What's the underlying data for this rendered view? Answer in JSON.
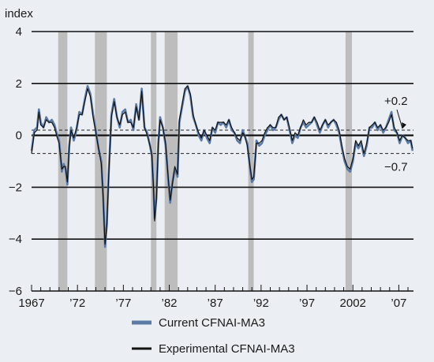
{
  "chart_data": {
    "type": "line",
    "ylabel": "index",
    "ylim": [
      -6,
      4
    ],
    "yticks": [
      4,
      2,
      0,
      -2,
      -4,
      -6
    ],
    "ytick_labels": [
      "4",
      "2",
      "0",
      "−2",
      "−4",
      "−6"
    ],
    "xlim": [
      1967,
      2008.6
    ],
    "xticks": [
      1967,
      1972,
      1977,
      1982,
      1987,
      1992,
      1997,
      2002,
      2007
    ],
    "xtick_labels": [
      "1967",
      "’72",
      "’77",
      "’82",
      "’87",
      "’92",
      "’97",
      "2002",
      "’07"
    ],
    "grid": "horizontal",
    "reference_lines": [
      {
        "value": 0.2,
        "style": "dashed",
        "label": "+0.2"
      },
      {
        "value": -0.7,
        "style": "dashed",
        "label": "−0.7"
      }
    ],
    "shaded_recessions": [
      [
        1969.9,
        1970.9
      ],
      [
        1973.9,
        1975.2
      ],
      [
        1980.0,
        1980.6
      ],
      [
        1981.5,
        1982.9
      ],
      [
        1990.6,
        1991.2
      ],
      [
        2001.2,
        2001.9
      ]
    ],
    "legend_placement": "bottom-center",
    "colors": {
      "current": "#5b7aa6",
      "experimental": "#111111",
      "shade": "#bdbdbd",
      "background": "#ebeef2"
    },
    "series": [
      {
        "name": "Current CFNAI-MA3",
        "points": [
          [
            1967.0,
            -0.6
          ],
          [
            1967.3,
            0.2
          ],
          [
            1967.6,
            0.3
          ],
          [
            1967.8,
            1.0
          ],
          [
            1968.0,
            0.5
          ],
          [
            1968.3,
            0.3
          ],
          [
            1968.6,
            0.7
          ],
          [
            1968.9,
            0.5
          ],
          [
            1969.2,
            0.6
          ],
          [
            1969.5,
            0.4
          ],
          [
            1969.8,
            0.0
          ],
          [
            1970.0,
            -0.2
          ],
          [
            1970.3,
            -1.4
          ],
          [
            1970.5,
            -1.1
          ],
          [
            1970.7,
            -1.3
          ],
          [
            1970.9,
            -1.9
          ],
          [
            1971.1,
            -0.4
          ],
          [
            1971.3,
            0.3
          ],
          [
            1971.6,
            -0.2
          ],
          [
            1971.9,
            0.2
          ],
          [
            1972.2,
            0.9
          ],
          [
            1972.5,
            0.8
          ],
          [
            1972.8,
            1.4
          ],
          [
            1973.1,
            1.9
          ],
          [
            1973.4,
            1.6
          ],
          [
            1973.7,
            0.8
          ],
          [
            1974.0,
            0.2
          ],
          [
            1974.3,
            -0.5
          ],
          [
            1974.6,
            -1.0
          ],
          [
            1974.8,
            -2.3
          ],
          [
            1975.0,
            -4.3
          ],
          [
            1975.2,
            -3.4
          ],
          [
            1975.4,
            -1.5
          ],
          [
            1975.7,
            0.8
          ],
          [
            1976.0,
            1.4
          ],
          [
            1976.3,
            0.7
          ],
          [
            1976.6,
            0.3
          ],
          [
            1976.9,
            0.9
          ],
          [
            1977.2,
            1.0
          ],
          [
            1977.5,
            0.5
          ],
          [
            1977.8,
            0.6
          ],
          [
            1978.1,
            0.2
          ],
          [
            1978.4,
            1.2
          ],
          [
            1978.7,
            0.6
          ],
          [
            1979.0,
            1.8
          ],
          [
            1979.3,
            0.3
          ],
          [
            1979.6,
            0.1
          ],
          [
            1979.9,
            -0.4
          ],
          [
            1980.1,
            -0.8
          ],
          [
            1980.3,
            -2.2
          ],
          [
            1980.4,
            -3.2
          ],
          [
            1980.6,
            -2.4
          ],
          [
            1980.8,
            -0.3
          ],
          [
            1981.0,
            0.7
          ],
          [
            1981.3,
            0.3
          ],
          [
            1981.6,
            -0.4
          ],
          [
            1981.9,
            -1.8
          ],
          [
            1982.1,
            -2.6
          ],
          [
            1982.3,
            -1.9
          ],
          [
            1982.6,
            -1.3
          ],
          [
            1982.9,
            -1.6
          ],
          [
            1983.1,
            0.5
          ],
          [
            1983.4,
            1.1
          ],
          [
            1983.7,
            1.7
          ],
          [
            1984.0,
            1.9
          ],
          [
            1984.3,
            1.5
          ],
          [
            1984.6,
            0.7
          ],
          [
            1984.9,
            0.4
          ],
          [
            1985.2,
            0.0
          ],
          [
            1985.5,
            -0.2
          ],
          [
            1985.8,
            0.2
          ],
          [
            1986.1,
            -0.1
          ],
          [
            1986.4,
            -0.3
          ],
          [
            1986.7,
            0.3
          ],
          [
            1987.0,
            0.1
          ],
          [
            1987.3,
            0.5
          ],
          [
            1987.6,
            0.4
          ],
          [
            1987.9,
            0.5
          ],
          [
            1988.2,
            0.3
          ],
          [
            1988.5,
            0.6
          ],
          [
            1988.8,
            0.2
          ],
          [
            1989.1,
            0.1
          ],
          [
            1989.4,
            -0.2
          ],
          [
            1989.7,
            -0.3
          ],
          [
            1990.0,
            0.2
          ],
          [
            1990.2,
            0.0
          ],
          [
            1990.5,
            -0.3
          ],
          [
            1990.8,
            -1.3
          ],
          [
            1991.0,
            -1.8
          ],
          [
            1991.2,
            -1.7
          ],
          [
            1991.5,
            -0.2
          ],
          [
            1991.8,
            -0.4
          ],
          [
            1992.1,
            -0.3
          ],
          [
            1992.4,
            0.0
          ],
          [
            1992.7,
            0.2
          ],
          [
            1993.0,
            0.4
          ],
          [
            1993.3,
            0.2
          ],
          [
            1993.6,
            0.3
          ],
          [
            1993.9,
            0.6
          ],
          [
            1994.2,
            0.8
          ],
          [
            1994.5,
            0.6
          ],
          [
            1994.8,
            0.7
          ],
          [
            1995.1,
            0.2
          ],
          [
            1995.4,
            -0.3
          ],
          [
            1995.7,
            0.0
          ],
          [
            1996.0,
            -0.1
          ],
          [
            1996.3,
            0.3
          ],
          [
            1996.6,
            0.5
          ],
          [
            1996.9,
            0.3
          ],
          [
            1997.2,
            0.4
          ],
          [
            1997.5,
            0.5
          ],
          [
            1997.8,
            0.7
          ],
          [
            1998.1,
            0.4
          ],
          [
            1998.4,
            0.1
          ],
          [
            1998.7,
            0.4
          ],
          [
            1999.0,
            0.6
          ],
          [
            1999.3,
            0.3
          ],
          [
            1999.6,
            0.5
          ],
          [
            1999.9,
            0.6
          ],
          [
            2000.2,
            0.4
          ],
          [
            2000.5,
            0.1
          ],
          [
            2000.8,
            -0.5
          ],
          [
            2001.1,
            -1.0
          ],
          [
            2001.4,
            -1.3
          ],
          [
            2001.7,
            -1.4
          ],
          [
            2002.0,
            -1.0
          ],
          [
            2002.3,
            -0.3
          ],
          [
            2002.6,
            -0.5
          ],
          [
            2002.9,
            -0.3
          ],
          [
            2003.2,
            -0.8
          ],
          [
            2003.5,
            -0.4
          ],
          [
            2003.8,
            0.3
          ],
          [
            2004.1,
            0.3
          ],
          [
            2004.4,
            0.5
          ],
          [
            2004.7,
            0.2
          ],
          [
            2005.0,
            0.4
          ],
          [
            2005.3,
            0.1
          ],
          [
            2005.6,
            0.3
          ],
          [
            2005.9,
            0.6
          ],
          [
            2006.2,
            0.9
          ],
          [
            2006.5,
            0.2
          ],
          [
            2006.8,
            0.1
          ],
          [
            2007.1,
            -0.3
          ],
          [
            2007.4,
            0.0
          ],
          [
            2007.7,
            -0.1
          ],
          [
            2008.0,
            -0.3
          ],
          [
            2008.3,
            -0.2
          ],
          [
            2008.5,
            -0.6
          ]
        ]
      },
      {
        "name": "Experimental CFNAI-MA3",
        "points": [
          [
            1967.0,
            -0.7
          ],
          [
            1967.3,
            0.1
          ],
          [
            1967.6,
            0.2
          ],
          [
            1967.8,
            0.9
          ],
          [
            1968.0,
            0.4
          ],
          [
            1968.3,
            0.3
          ],
          [
            1968.6,
            0.6
          ],
          [
            1968.9,
            0.5
          ],
          [
            1969.2,
            0.5
          ],
          [
            1969.5,
            0.3
          ],
          [
            1969.8,
            -0.1
          ],
          [
            1970.0,
            -0.3
          ],
          [
            1970.3,
            -1.3
          ],
          [
            1970.5,
            -1.2
          ],
          [
            1970.7,
            -1.2
          ],
          [
            1970.9,
            -1.8
          ],
          [
            1971.1,
            -0.5
          ],
          [
            1971.3,
            0.2
          ],
          [
            1971.6,
            -0.1
          ],
          [
            1971.9,
            0.3
          ],
          [
            1972.2,
            0.8
          ],
          [
            1972.5,
            0.8
          ],
          [
            1972.8,
            1.3
          ],
          [
            1973.1,
            1.8
          ],
          [
            1973.4,
            1.5
          ],
          [
            1973.7,
            0.7
          ],
          [
            1974.0,
            0.1
          ],
          [
            1974.3,
            -0.5
          ],
          [
            1974.6,
            -1.1
          ],
          [
            1974.8,
            -2.4
          ],
          [
            1975.0,
            -4.2
          ],
          [
            1975.2,
            -3.5
          ],
          [
            1975.4,
            -1.6
          ],
          [
            1975.7,
            0.7
          ],
          [
            1976.0,
            1.3
          ],
          [
            1976.3,
            0.7
          ],
          [
            1976.6,
            0.4
          ],
          [
            1976.9,
            0.8
          ],
          [
            1977.2,
            0.9
          ],
          [
            1977.5,
            0.5
          ],
          [
            1977.8,
            0.5
          ],
          [
            1978.1,
            0.3
          ],
          [
            1978.4,
            1.1
          ],
          [
            1978.7,
            0.6
          ],
          [
            1979.0,
            1.7
          ],
          [
            1979.3,
            0.3
          ],
          [
            1979.6,
            0.0
          ],
          [
            1979.9,
            -0.4
          ],
          [
            1980.1,
            -0.7
          ],
          [
            1980.3,
            -2.1
          ],
          [
            1980.4,
            -3.3
          ],
          [
            1980.6,
            -2.5
          ],
          [
            1980.8,
            -0.4
          ],
          [
            1981.0,
            0.6
          ],
          [
            1981.3,
            0.3
          ],
          [
            1981.6,
            -0.3
          ],
          [
            1981.9,
            -1.7
          ],
          [
            1982.1,
            -2.5
          ],
          [
            1982.3,
            -2.0
          ],
          [
            1982.6,
            -1.2
          ],
          [
            1982.9,
            -1.5
          ],
          [
            1983.1,
            0.6
          ],
          [
            1983.4,
            1.2
          ],
          [
            1983.7,
            1.8
          ],
          [
            1984.0,
            1.9
          ],
          [
            1984.3,
            1.6
          ],
          [
            1984.6,
            0.8
          ],
          [
            1984.9,
            0.4
          ],
          [
            1985.2,
            0.1
          ],
          [
            1985.5,
            -0.1
          ],
          [
            1985.8,
            0.2
          ],
          [
            1986.1,
            0.0
          ],
          [
            1986.4,
            -0.2
          ],
          [
            1986.7,
            0.3
          ],
          [
            1987.0,
            0.2
          ],
          [
            1987.3,
            0.5
          ],
          [
            1987.6,
            0.5
          ],
          [
            1987.9,
            0.5
          ],
          [
            1988.2,
            0.4
          ],
          [
            1988.5,
            0.6
          ],
          [
            1988.8,
            0.3
          ],
          [
            1989.1,
            0.1
          ],
          [
            1989.4,
            -0.1
          ],
          [
            1989.7,
            -0.2
          ],
          [
            1990.0,
            0.1
          ],
          [
            1990.2,
            0.0
          ],
          [
            1990.5,
            -0.4
          ],
          [
            1990.8,
            -1.2
          ],
          [
            1991.0,
            -1.7
          ],
          [
            1991.2,
            -1.6
          ],
          [
            1991.5,
            -0.3
          ],
          [
            1991.8,
            -0.3
          ],
          [
            1992.1,
            -0.2
          ],
          [
            1992.4,
            0.1
          ],
          [
            1992.7,
            0.3
          ],
          [
            1993.0,
            0.4
          ],
          [
            1993.3,
            0.3
          ],
          [
            1993.6,
            0.3
          ],
          [
            1993.9,
            0.7
          ],
          [
            1994.2,
            0.8
          ],
          [
            1994.5,
            0.6
          ],
          [
            1994.8,
            0.7
          ],
          [
            1995.1,
            0.3
          ],
          [
            1995.4,
            -0.2
          ],
          [
            1995.7,
            0.1
          ],
          [
            1996.0,
            0.0
          ],
          [
            1996.3,
            0.3
          ],
          [
            1996.6,
            0.6
          ],
          [
            1996.9,
            0.4
          ],
          [
            1997.2,
            0.5
          ],
          [
            1997.5,
            0.5
          ],
          [
            1997.8,
            0.7
          ],
          [
            1998.1,
            0.5
          ],
          [
            1998.4,
            0.2
          ],
          [
            1998.7,
            0.4
          ],
          [
            1999.0,
            0.6
          ],
          [
            1999.3,
            0.4
          ],
          [
            1999.6,
            0.5
          ],
          [
            1999.9,
            0.6
          ],
          [
            2000.2,
            0.5
          ],
          [
            2000.5,
            0.2
          ],
          [
            2000.8,
            -0.4
          ],
          [
            2001.1,
            -0.9
          ],
          [
            2001.4,
            -1.2
          ],
          [
            2001.7,
            -1.3
          ],
          [
            2002.0,
            -0.9
          ],
          [
            2002.3,
            -0.2
          ],
          [
            2002.6,
            -0.4
          ],
          [
            2002.9,
            -0.2
          ],
          [
            2003.2,
            -0.7
          ],
          [
            2003.5,
            -0.3
          ],
          [
            2003.8,
            0.3
          ],
          [
            2004.1,
            0.4
          ],
          [
            2004.4,
            0.5
          ],
          [
            2004.7,
            0.3
          ],
          [
            2005.0,
            0.4
          ],
          [
            2005.3,
            0.2
          ],
          [
            2005.6,
            0.3
          ],
          [
            2005.9,
            0.5
          ],
          [
            2006.2,
            0.8
          ],
          [
            2006.5,
            0.3
          ],
          [
            2006.8,
            0.1
          ],
          [
            2007.1,
            -0.2
          ],
          [
            2007.4,
            0.0
          ],
          [
            2007.7,
            -0.1
          ],
          [
            2008.0,
            -0.2
          ],
          [
            2008.3,
            -0.2
          ],
          [
            2008.5,
            -0.5
          ]
        ]
      }
    ]
  }
}
